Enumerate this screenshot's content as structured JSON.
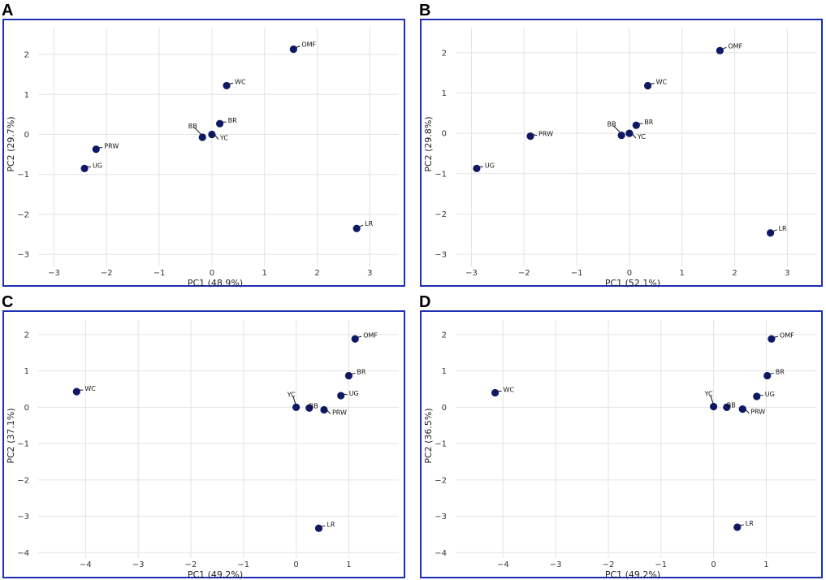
{
  "chart_data": [
    {
      "panel": "A",
      "type": "scatter",
      "title": "",
      "xlabel": "PC1 (48.9%)",
      "ylabel": "PC2 (29.7%)",
      "xlim": [
        -3.3,
        3.55
      ],
      "ylim": [
        -3.3,
        2.65
      ],
      "xticks": [
        -3,
        -2,
        -1,
        0,
        1,
        2,
        3
      ],
      "yticks": [
        2,
        1,
        0,
        -1,
        -2,
        -3
      ],
      "grid": true,
      "points": [
        {
          "label": "OMF",
          "x": 1.55,
          "y": 2.13
        },
        {
          "label": "WC",
          "x": 0.28,
          "y": 1.22
        },
        {
          "label": "BR",
          "x": 0.15,
          "y": 0.27
        },
        {
          "label": "BB",
          "x": -0.18,
          "y": -0.07
        },
        {
          "label": "YC",
          "x": 0.0,
          "y": 0.0
        },
        {
          "label": "PRW",
          "x": -2.2,
          "y": -0.37
        },
        {
          "label": "UG",
          "x": -2.42,
          "y": -0.85
        },
        {
          "label": "LR",
          "x": 2.75,
          "y": -2.35
        }
      ]
    },
    {
      "panel": "B",
      "type": "scatter",
      "title": "",
      "xlabel": "PC1 (52.1%)",
      "ylabel": "PC2 (29.8%)",
      "xlim": [
        -3.3,
        3.55
      ],
      "ylim": [
        -3.3,
        2.6
      ],
      "xticks": [
        -3,
        -2,
        -1,
        0,
        1,
        2,
        3
      ],
      "yticks": [
        2,
        1,
        0,
        -1,
        -2,
        -3
      ],
      "grid": true,
      "points": [
        {
          "label": "OMF",
          "x": 1.72,
          "y": 2.05
        },
        {
          "label": "WC",
          "x": 0.35,
          "y": 1.18
        },
        {
          "label": "BR",
          "x": 0.13,
          "y": 0.2
        },
        {
          "label": "BB",
          "x": -0.15,
          "y": -0.05
        },
        {
          "label": "YC",
          "x": 0.0,
          "y": 0.0
        },
        {
          "label": "PRW",
          "x": -1.88,
          "y": -0.07
        },
        {
          "label": "UG",
          "x": -2.9,
          "y": -0.87
        },
        {
          "label": "LR",
          "x": 2.68,
          "y": -2.47
        }
      ]
    },
    {
      "panel": "C",
      "type": "scatter",
      "title": "",
      "xlabel": "PC1 (49.2%)",
      "ylabel": "PC2 (37.1%)",
      "xlim": [
        -4.9,
        1.95
      ],
      "ylim": [
        -4.15,
        2.4
      ],
      "xticks": [
        -4,
        -3,
        -2,
        -1,
        0,
        1
      ],
      "yticks": [
        2,
        1,
        0,
        -1,
        -2,
        -3,
        -4
      ],
      "grid": true,
      "points": [
        {
          "label": "OMF",
          "x": 1.12,
          "y": 1.88
        },
        {
          "label": "BR",
          "x": 1.0,
          "y": 0.87
        },
        {
          "label": "UG",
          "x": 0.85,
          "y": 0.32
        },
        {
          "label": "YC",
          "x": 0.0,
          "y": 0.0
        },
        {
          "label": "BB",
          "x": 0.25,
          "y": -0.02
        },
        {
          "label": "PRW",
          "x": 0.53,
          "y": -0.07
        },
        {
          "label": "WC",
          "x": -4.17,
          "y": 0.43
        },
        {
          "label": "LR",
          "x": 0.43,
          "y": -3.33
        }
      ]
    },
    {
      "panel": "D",
      "type": "scatter",
      "title": "",
      "xlabel": "PC1 (49.2%)",
      "ylabel": "PC2 (36.5%)",
      "xlim": [
        -4.9,
        1.95
      ],
      "ylim": [
        -4.15,
        2.4
      ],
      "xticks": [
        -4,
        -3,
        -2,
        -1,
        0,
        1
      ],
      "yticks": [
        2,
        1,
        0,
        -1,
        -2,
        -3,
        -4
      ],
      "grid": true,
      "points": [
        {
          "label": "OMF",
          "x": 1.1,
          "y": 1.88
        },
        {
          "label": "BR",
          "x": 1.02,
          "y": 0.87
        },
        {
          "label": "UG",
          "x": 0.82,
          "y": 0.3
        },
        {
          "label": "YC",
          "x": 0.0,
          "y": 0.02
        },
        {
          "label": "BB",
          "x": 0.25,
          "y": 0.0
        },
        {
          "label": "PRW",
          "x": 0.55,
          "y": -0.05
        },
        {
          "label": "WC",
          "x": -4.15,
          "y": 0.4
        },
        {
          "label": "LR",
          "x": 0.45,
          "y": -3.3
        }
      ]
    }
  ]
}
